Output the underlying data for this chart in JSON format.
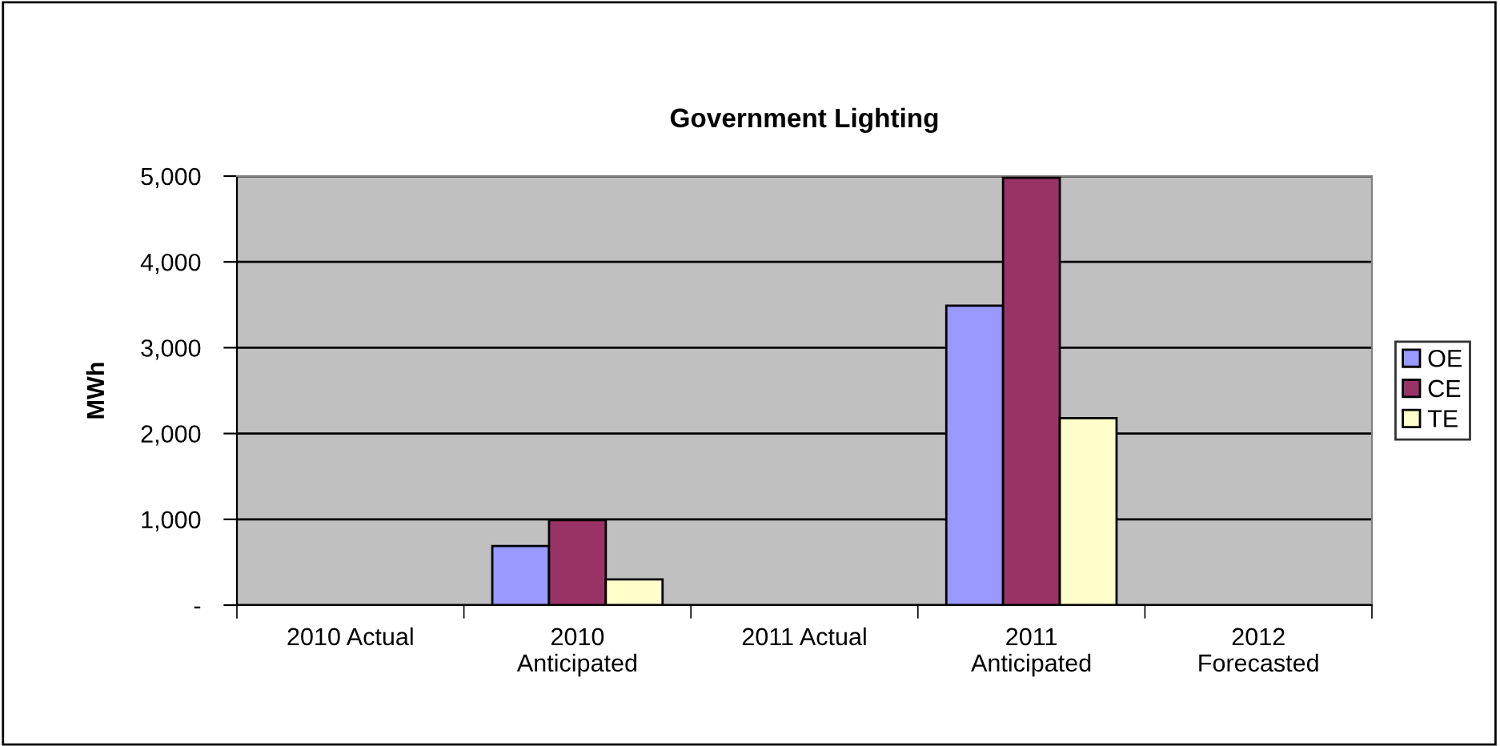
{
  "chart_data": {
    "type": "bar",
    "title": "Government Lighting",
    "ylabel": "MWh",
    "categories": [
      "2010 Actual",
      "2010\nAnticipated",
      "2011 Actual",
      "2011\nAnticipated",
      "2012\nForecasted"
    ],
    "series": [
      {
        "name": "OE",
        "color": "#9999ff",
        "values": [
          null,
          690,
          null,
          3490,
          null
        ]
      },
      {
        "name": "CE",
        "color": "#993366",
        "values": [
          null,
          990,
          null,
          4980,
          null
        ]
      },
      {
        "name": "TE",
        "color": "#ffffcc",
        "values": [
          null,
          300,
          null,
          2180,
          null
        ]
      }
    ],
    "ylim": [
      0,
      5000
    ],
    "yticks": [
      {
        "value": 0,
        "label": "-"
      },
      {
        "value": 1000,
        "label": "1,000"
      },
      {
        "value": 2000,
        "label": "2,000"
      },
      {
        "value": 3000,
        "label": "3,000"
      },
      {
        "value": 4000,
        "label": "4,000"
      },
      {
        "value": 5000,
        "label": "5,000"
      }
    ],
    "grid": "y",
    "legend": "right"
  }
}
